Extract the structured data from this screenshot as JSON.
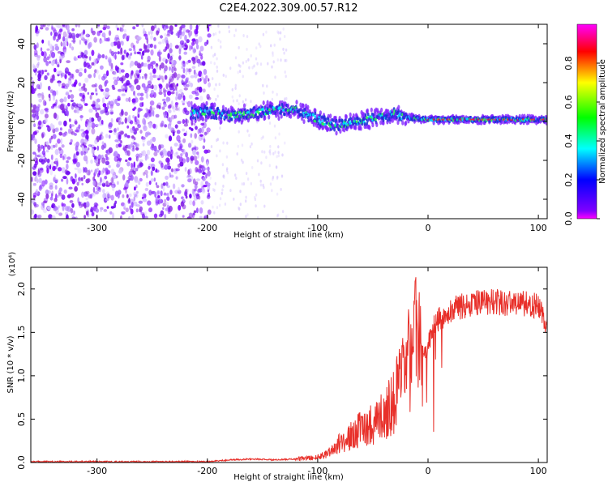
{
  "title": "C2E4.2022.309.00.57.R12",
  "chart_data": [
    {
      "type": "heatmap",
      "name": "spectrogram",
      "xlabel": "Height of straight line (km)",
      "ylabel": "Frequency (Hz)",
      "xlim": [
        -360,
        108
      ],
      "ylim": [
        -50,
        50
      ],
      "xticks": [
        -300,
        -200,
        -100,
        0,
        100
      ],
      "xtick_labels": [
        "-300",
        "-200",
        "-100",
        "0",
        "100"
      ],
      "yticks": [
        -40,
        -20,
        0,
        20,
        40
      ],
      "ytick_labels": [
        "-40",
        "-20",
        "0",
        "20",
        "40"
      ],
      "colorbar": {
        "label": "Normalized spectral amplitude",
        "range": [
          0,
          1
        ],
        "ticks": [
          0.0,
          0.2,
          0.4,
          0.6,
          0.8
        ],
        "tick_labels": [
          "0.0",
          "0.2",
          "0.4",
          "0.6",
          "0.8"
        ],
        "colormap": [
          "#ff00ff",
          "#ff0000",
          "#ffff00",
          "#00ff00",
          "#00ffff",
          "#0000ff",
          "#ff00ff"
        ]
      },
      "signal_track": {
        "x": [
          -215,
          -200,
          -180,
          -160,
          -140,
          -120,
          -100,
          -85,
          -70,
          -55,
          -40,
          -30,
          -20,
          0,
          20,
          50,
          80,
          108
        ],
        "y": [
          4,
          5,
          3,
          4,
          6,
          6,
          1,
          -2,
          -1,
          1,
          3,
          4,
          2,
          1,
          1,
          1,
          1,
          1
        ]
      },
      "grid": false
    },
    {
      "type": "line",
      "name": "snr",
      "xlabel": "Height of straight line (km)",
      "ylabel": "SNR (10 * v/v)",
      "y_multiplier": "(x10⁴)",
      "xlim": [
        -360,
        108
      ],
      "ylim": [
        0,
        2.25
      ],
      "xticks": [
        -300,
        -200,
        -100,
        0,
        100
      ],
      "xtick_labels": [
        "-300",
        "-200",
        "-100",
        "0",
        "100"
      ],
      "yticks": [
        0.0,
        0.5,
        1.0,
        1.5,
        2.0
      ],
      "ytick_labels": [
        "0.0",
        "0.5",
        "1.0",
        "1.5",
        "2.0"
      ],
      "series": [
        {
          "color": "#e8302a",
          "x": [
            -360,
            -300,
            -250,
            -200,
            -180,
            -160,
            -140,
            -120,
            -100,
            -90,
            -80,
            -70,
            -60,
            -50,
            -40,
            -30,
            -20,
            -15,
            -10,
            -5,
            0,
            5,
            10,
            20,
            30,
            40,
            50,
            60,
            70,
            80,
            90,
            100,
            108
          ],
          "y": [
            0.01,
            0.01,
            0.01,
            0.01,
            0.03,
            0.04,
            0.03,
            0.04,
            0.06,
            0.12,
            0.22,
            0.3,
            0.4,
            0.45,
            0.55,
            0.75,
            1.05,
            1.35,
            1.45,
            1.3,
            1.35,
            1.55,
            1.65,
            1.75,
            1.8,
            1.83,
            1.85,
            1.85,
            1.84,
            1.84,
            1.83,
            1.8,
            1.55
          ]
        }
      ],
      "grid": false
    }
  ]
}
